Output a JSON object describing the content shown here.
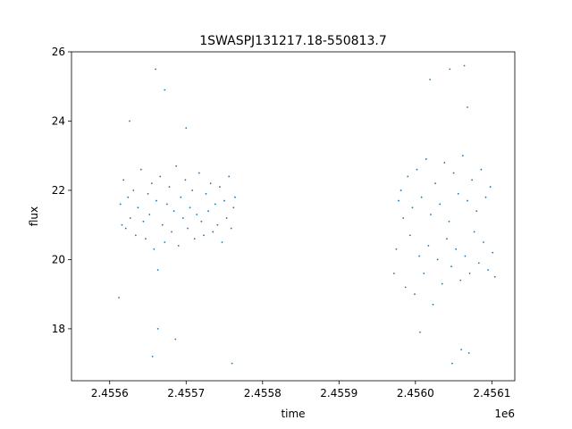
{
  "chart_data": {
    "type": "scatter",
    "title": "1SWASPJ131217.18-550813.7",
    "xlabel": "time",
    "ylabel": "flux",
    "x_offset_label": "1e6",
    "xlim": [
      2.45555,
      2.45613
    ],
    "ylim": [
      16.5,
      26
    ],
    "x_ticks": [
      2.4556,
      2.4557,
      2.4558,
      2.4559,
      2.456,
      2.4561
    ],
    "x_tick_labels": [
      "2.4556",
      "2.4557",
      "2.4558",
      "2.4559",
      "2.4560",
      "2.4561"
    ],
    "y_ticks": [
      18,
      20,
      22,
      24,
      26
    ],
    "y_tick_labels": [
      "18",
      "20",
      "22",
      "24",
      "26"
    ],
    "grid": false,
    "marker_color": "#1f77b4",
    "series": [
      {
        "values_description_omitted": true,
        "points": [
          [
            2.455614,
            21.6
          ],
          [
            2.455616,
            21.0
          ],
          [
            2.455618,
            22.3
          ],
          [
            2.455621,
            20.9
          ],
          [
            2.455624,
            21.8
          ],
          [
            2.455627,
            21.2
          ],
          [
            2.455631,
            22.0
          ],
          [
            2.455634,
            20.7
          ],
          [
            2.455637,
            21.5
          ],
          [
            2.455641,
            22.6
          ],
          [
            2.455644,
            21.1
          ],
          [
            2.455647,
            20.6
          ],
          [
            2.45565,
            21.9
          ],
          [
            2.455652,
            21.3
          ],
          [
            2.455655,
            22.2
          ],
          [
            2.455658,
            20.3
          ],
          [
            2.455661,
            21.7
          ],
          [
            2.455663,
            19.7
          ],
          [
            2.455666,
            22.4
          ],
          [
            2.455669,
            21.0
          ],
          [
            2.455672,
            20.5
          ],
          [
            2.455675,
            21.6
          ],
          [
            2.455678,
            22.1
          ],
          [
            2.455681,
            20.8
          ],
          [
            2.455684,
            21.4
          ],
          [
            2.455687,
            22.7
          ],
          [
            2.45569,
            20.4
          ],
          [
            2.455693,
            21.8
          ],
          [
            2.455696,
            21.2
          ],
          [
            2.455699,
            22.3
          ],
          [
            2.455702,
            20.9
          ],
          [
            2.455705,
            21.5
          ],
          [
            2.455708,
            22.0
          ],
          [
            2.455711,
            20.6
          ],
          [
            2.455714,
            21.3
          ],
          [
            2.455717,
            22.5
          ],
          [
            2.45572,
            21.1
          ],
          [
            2.455723,
            20.7
          ],
          [
            2.455726,
            21.9
          ],
          [
            2.455729,
            21.4
          ],
          [
            2.455732,
            22.2
          ],
          [
            2.455735,
            20.8
          ],
          [
            2.455738,
            21.6
          ],
          [
            2.455741,
            21.0
          ],
          [
            2.455744,
            22.1
          ],
          [
            2.455747,
            20.5
          ],
          [
            2.45575,
            21.7
          ],
          [
            2.455753,
            21.2
          ],
          [
            2.455756,
            22.4
          ],
          [
            2.455759,
            20.9
          ],
          [
            2.455762,
            21.5
          ],
          [
            2.455764,
            21.8
          ],
          [
            2.455626,
            24.0
          ],
          [
            2.45566,
            25.5
          ],
          [
            2.455672,
            24.9
          ],
          [
            2.455656,
            17.2
          ],
          [
            2.455663,
            18.0
          ],
          [
            2.455686,
            17.7
          ],
          [
            2.45576,
            17.0
          ],
          [
            2.4557,
            23.8
          ],
          [
            2.455612,
            18.9
          ],
          [
            2.455972,
            19.6
          ],
          [
            2.455975,
            20.3
          ],
          [
            2.455978,
            21.7
          ],
          [
            2.455981,
            22.0
          ],
          [
            2.455984,
            21.2
          ],
          [
            2.455987,
            19.2
          ],
          [
            2.45599,
            22.4
          ],
          [
            2.455993,
            20.7
          ],
          [
            2.455996,
            21.5
          ],
          [
            2.455999,
            19.0
          ],
          [
            2.456002,
            22.6
          ],
          [
            2.456005,
            20.1
          ],
          [
            2.456008,
            21.8
          ],
          [
            2.456011,
            19.6
          ],
          [
            2.456014,
            22.9
          ],
          [
            2.456017,
            20.4
          ],
          [
            2.45602,
            21.3
          ],
          [
            2.456023,
            18.7
          ],
          [
            2.456026,
            22.2
          ],
          [
            2.456029,
            20.0
          ],
          [
            2.456032,
            21.6
          ],
          [
            2.456035,
            19.3
          ],
          [
            2.456038,
            22.8
          ],
          [
            2.456041,
            20.6
          ],
          [
            2.456044,
            21.1
          ],
          [
            2.456047,
            19.8
          ],
          [
            2.45605,
            22.5
          ],
          [
            2.456053,
            20.3
          ],
          [
            2.456056,
            21.9
          ],
          [
            2.456059,
            19.4
          ],
          [
            2.456062,
            23.0
          ],
          [
            2.456065,
            20.1
          ],
          [
            2.456068,
            21.7
          ],
          [
            2.456071,
            19.6
          ],
          [
            2.456074,
            22.3
          ],
          [
            2.456077,
            20.8
          ],
          [
            2.45608,
            21.4
          ],
          [
            2.456083,
            19.9
          ],
          [
            2.456086,
            22.6
          ],
          [
            2.456089,
            20.5
          ],
          [
            2.456092,
            21.8
          ],
          [
            2.456095,
            19.7
          ],
          [
            2.456098,
            22.1
          ],
          [
            2.456101,
            20.2
          ],
          [
            2.456104,
            19.5
          ],
          [
            2.456045,
            25.5
          ],
          [
            2.456064,
            25.6
          ],
          [
            2.456068,
            24.4
          ],
          [
            2.45606,
            17.4
          ],
          [
            2.456048,
            17.0
          ],
          [
            2.45607,
            17.3
          ],
          [
            2.456006,
            17.9
          ],
          [
            2.456019,
            25.2
          ]
        ]
      }
    ]
  }
}
